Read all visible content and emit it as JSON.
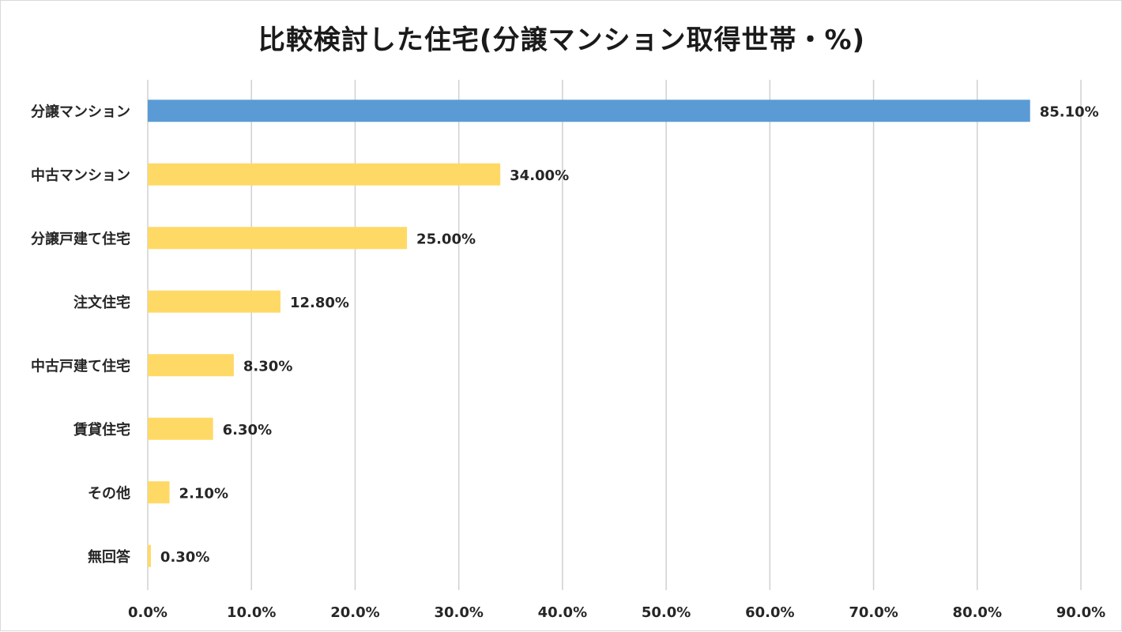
{
  "chart_data": {
    "type": "bar",
    "orientation": "horizontal",
    "title": "比較検討した住宅(分譲マンション取得世帯・%)",
    "categories": [
      "分譲マンション",
      "中古マンション",
      "分譲戸建て住宅",
      "注文住宅",
      "中古戸建て住宅",
      "賃貸住宅",
      "その他",
      "無回答"
    ],
    "values": [
      85.1,
      34.0,
      25.0,
      12.8,
      8.3,
      6.3,
      2.1,
      0.3
    ],
    "data_labels": [
      "85.10%",
      "34.00%",
      "25.00%",
      "12.80%",
      "8.30%",
      "6.30%",
      "2.10%",
      "0.30%"
    ],
    "xlim": [
      0,
      90
    ],
    "x_ticks": [
      0,
      10,
      20,
      30,
      40,
      50,
      60,
      70,
      80,
      90
    ],
    "x_tick_labels": [
      "0.0%",
      "10.0%",
      "20.0%",
      "30.0%",
      "40.0%",
      "50.0%",
      "60.0%",
      "70.0%",
      "80.0%",
      "90.0%"
    ],
    "xlabel": "",
    "ylabel": "",
    "grid": "vertical",
    "legend": "none",
    "colors": {
      "highlight": "#5b9bd5",
      "default": "#ffd966"
    },
    "highlight_index": 0
  }
}
